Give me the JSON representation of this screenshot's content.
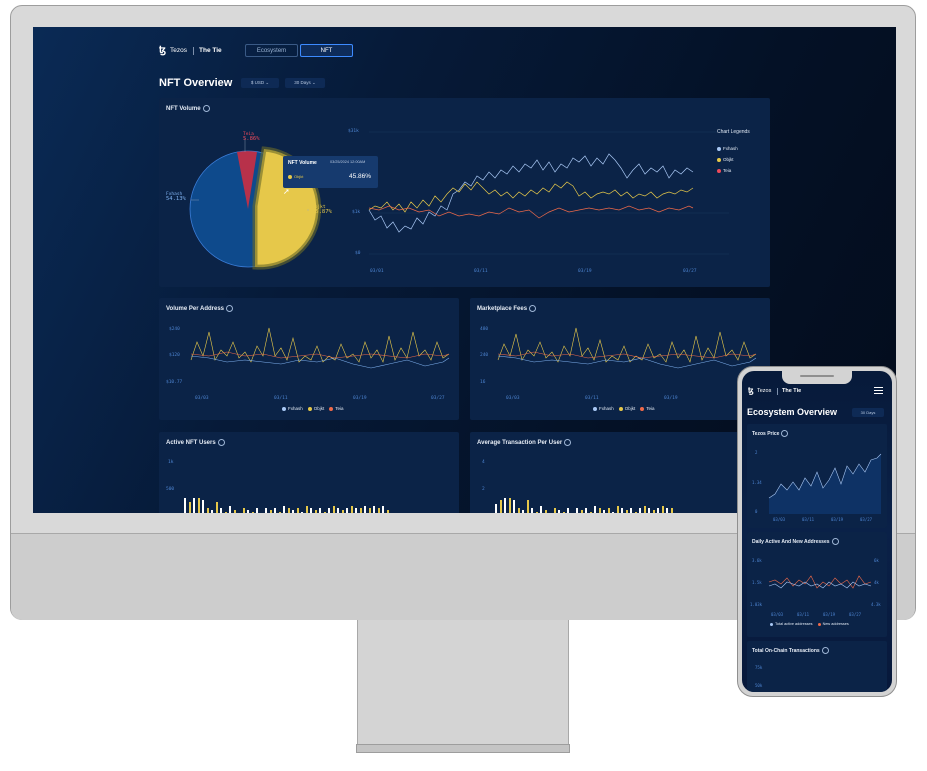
{
  "header": {
    "brand_tezos": "Tezos",
    "brand_tie": "The Tie",
    "tabs": [
      "Ecosystem",
      "NFT"
    ],
    "active_tab": "NFT"
  },
  "page": {
    "title": "NFT Overview",
    "currency": "$ USD",
    "range": "30 Days"
  },
  "nft_volume": {
    "title": "NFT Volume",
    "legend_title": "Chart Legends",
    "legend": [
      "Fxhash",
      "Objkt",
      "Teia"
    ],
    "colors": {
      "Fxhash": "#a9c8f5",
      "Objkt": "#e6c84a",
      "Teia": "#ef6a4a"
    },
    "pie_labels": [
      {
        "name": "Teia",
        "pct": "5.86%"
      },
      {
        "name": "Fxhash",
        "pct": "54.13%"
      },
      {
        "name": "Objkt",
        "pct": "45.87%"
      }
    ],
    "tooltip": {
      "title": "NFT Volume",
      "date": "03/25/2024 12:00AM",
      "series": "Objkt",
      "value": "45.86%"
    },
    "y_ticks": [
      "$31k",
      "$1k",
      "$0"
    ],
    "x_ticks": [
      "03/01",
      "03/11",
      "03/19",
      "03/27"
    ]
  },
  "volume_per_address": {
    "title": "Volume Per Address",
    "y_ticks": [
      "$240",
      "$120",
      "$10.77"
    ],
    "x_ticks": [
      "03/03",
      "03/11",
      "03/19",
      "03/27"
    ],
    "legend": [
      "Fxhash",
      "Objkt",
      "Teia"
    ]
  },
  "marketplace_fees": {
    "title": "Marketplace Fees",
    "y_ticks": [
      "480",
      "240",
      "16"
    ],
    "x_ticks": [
      "03/03",
      "03/11",
      "03/19",
      "03/27"
    ],
    "legend": [
      "Fxhash",
      "Objkt",
      "Teia"
    ]
  },
  "active_users": {
    "title": "Active NFT Users",
    "y_ticks": [
      "1k",
      "500"
    ]
  },
  "avg_tx": {
    "title": "Average Transaction Per User",
    "y_ticks": [
      "4",
      "2"
    ]
  },
  "mobile": {
    "brand_tezos": "Tezos",
    "brand_tie": "The Tie",
    "title": "Ecosystem Overview",
    "range": "30 Days",
    "tezos_price": {
      "title": "Tezos Price",
      "y_ticks": [
        "2",
        "1.34",
        "0"
      ],
      "x_ticks": [
        "03/03",
        "03/11",
        "03/19",
        "03/27"
      ]
    },
    "addresses": {
      "title": "Daily Active And New Addresses",
      "y_left": [
        "3.6k",
        "1.5k",
        "1.03k"
      ],
      "y_right": [
        "6k",
        "4k",
        "4.3k"
      ],
      "x_ticks": [
        "03/03",
        "03/11",
        "03/19",
        "03/27"
      ],
      "legend": [
        "Total active addresses",
        "New addresses"
      ]
    },
    "transactions": {
      "title": "Total On-Chain Transactions",
      "y_ticks": [
        "75k",
        "50k"
      ]
    }
  }
}
